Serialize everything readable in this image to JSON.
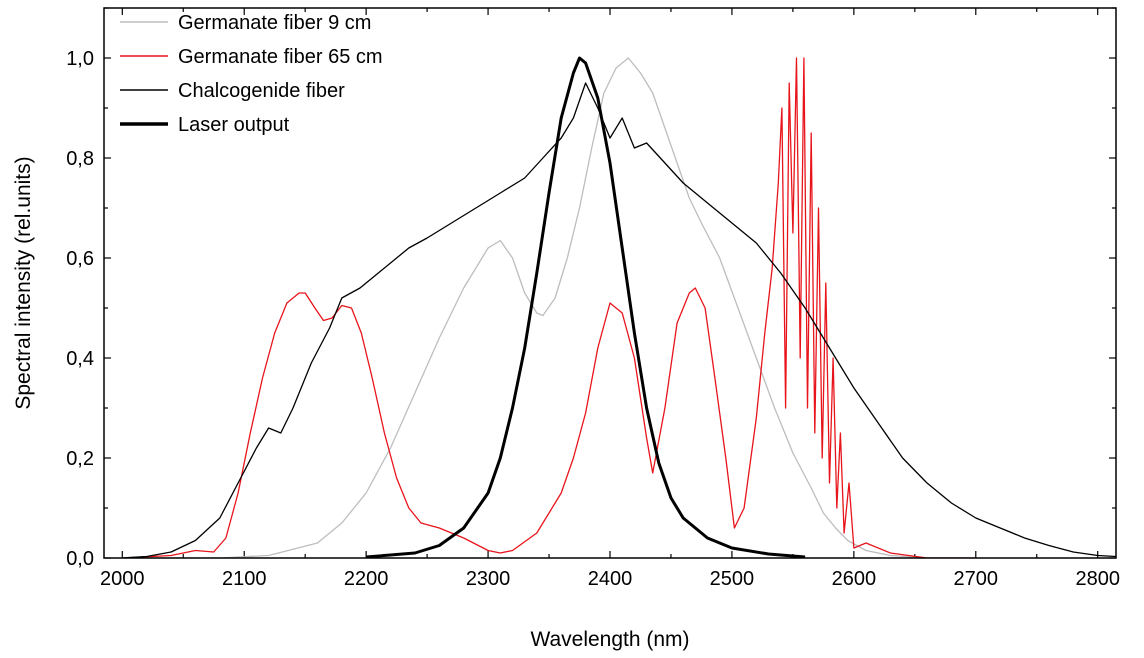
{
  "chart_data": {
    "type": "line",
    "xlabel": "Wavelength (nm)",
    "ylabel": "Spectral intensity (rel.units)",
    "xlim": [
      1985,
      2815
    ],
    "ylim": [
      0,
      1.1
    ],
    "x_ticks": [
      "2000",
      "2100",
      "2200",
      "2300",
      "2400",
      "2500",
      "2600",
      "2700",
      "2800"
    ],
    "y_ticks": [
      "0,0",
      "0,2",
      "0,4",
      "0,6",
      "0,8",
      "1,0"
    ],
    "legend_position": "top-left",
    "series": [
      {
        "name": "Germanate fiber 9 cm",
        "color": "#bdbdbd",
        "style": "thin",
        "x": [
          2000,
          2040,
          2080,
          2120,
          2160,
          2180,
          2200,
          2220,
          2240,
          2260,
          2280,
          2300,
          2310,
          2320,
          2330,
          2340,
          2345,
          2355,
          2365,
          2375,
          2385,
          2395,
          2405,
          2415,
          2425,
          2435,
          2445,
          2455,
          2465,
          2475,
          2490,
          2505,
          2520,
          2535,
          2550,
          2565,
          2575,
          2585,
          2595,
          2610,
          2630,
          2660,
          2700
        ],
        "y": [
          0.0,
          0.0,
          0.0,
          0.005,
          0.03,
          0.07,
          0.13,
          0.22,
          0.33,
          0.44,
          0.54,
          0.62,
          0.635,
          0.6,
          0.53,
          0.49,
          0.485,
          0.52,
          0.6,
          0.7,
          0.82,
          0.93,
          0.98,
          1.0,
          0.97,
          0.93,
          0.86,
          0.79,
          0.72,
          0.67,
          0.6,
          0.5,
          0.4,
          0.3,
          0.21,
          0.14,
          0.09,
          0.06,
          0.035,
          0.015,
          0.005,
          0.0,
          0.0
        ]
      },
      {
        "name": "Germanate fiber 65 cm",
        "color": "#e8141b",
        "style": "thin",
        "x": [
          2000,
          2040,
          2060,
          2075,
          2085,
          2095,
          2105,
          2115,
          2125,
          2135,
          2145,
          2150,
          2158,
          2165,
          2172,
          2180,
          2188,
          2196,
          2205,
          2215,
          2225,
          2235,
          2245,
          2260,
          2280,
          2300,
          2310,
          2320,
          2340,
          2360,
          2370,
          2380,
          2390,
          2400,
          2410,
          2420,
          2430,
          2435,
          2445,
          2455,
          2465,
          2470,
          2478,
          2486,
          2495,
          2502,
          2510,
          2520,
          2527,
          2533,
          2538,
          2541,
          2544,
          2547,
          2550,
          2553,
          2556,
          2559,
          2562,
          2565,
          2568,
          2571,
          2574,
          2577,
          2580,
          2583,
          2586,
          2589,
          2592,
          2596,
          2600,
          2610,
          2630,
          2660,
          2700
        ],
        "y": [
          0.0,
          0.005,
          0.015,
          0.012,
          0.04,
          0.13,
          0.25,
          0.36,
          0.45,
          0.51,
          0.53,
          0.53,
          0.5,
          0.475,
          0.48,
          0.505,
          0.5,
          0.45,
          0.36,
          0.25,
          0.16,
          0.1,
          0.07,
          0.06,
          0.04,
          0.015,
          0.01,
          0.015,
          0.05,
          0.13,
          0.2,
          0.29,
          0.42,
          0.51,
          0.49,
          0.4,
          0.24,
          0.17,
          0.3,
          0.47,
          0.53,
          0.54,
          0.5,
          0.36,
          0.2,
          0.06,
          0.1,
          0.28,
          0.45,
          0.58,
          0.75,
          0.9,
          0.3,
          0.95,
          0.65,
          1.0,
          0.4,
          1.0,
          0.3,
          0.85,
          0.25,
          0.7,
          0.2,
          0.55,
          0.15,
          0.4,
          0.1,
          0.25,
          0.05,
          0.15,
          0.02,
          0.03,
          0.01,
          0.0,
          0.0
        ]
      },
      {
        "name": "Chalcogenide fiber",
        "color": "#000000",
        "style": "thin",
        "x": [
          2000,
          2020,
          2040,
          2060,
          2080,
          2095,
          2110,
          2120,
          2130,
          2140,
          2155,
          2170,
          2180,
          2195,
          2210,
          2225,
          2235,
          2250,
          2270,
          2290,
          2310,
          2330,
          2345,
          2360,
          2370,
          2380,
          2390,
          2400,
          2410,
          2420,
          2430,
          2445,
          2460,
          2480,
          2500,
          2520,
          2540,
          2560,
          2580,
          2600,
          2620,
          2640,
          2660,
          2680,
          2700,
          2720,
          2740,
          2760,
          2780,
          2800,
          2815
        ],
        "y": [
          0.0,
          0.003,
          0.012,
          0.035,
          0.08,
          0.15,
          0.22,
          0.26,
          0.25,
          0.3,
          0.39,
          0.46,
          0.52,
          0.54,
          0.57,
          0.6,
          0.62,
          0.64,
          0.67,
          0.7,
          0.73,
          0.76,
          0.8,
          0.84,
          0.88,
          0.95,
          0.9,
          0.84,
          0.88,
          0.82,
          0.83,
          0.79,
          0.75,
          0.71,
          0.67,
          0.63,
          0.57,
          0.5,
          0.42,
          0.34,
          0.27,
          0.2,
          0.15,
          0.11,
          0.08,
          0.06,
          0.04,
          0.025,
          0.012,
          0.005,
          0.003
        ]
      },
      {
        "name": "Laser output",
        "color": "#000000",
        "style": "thick",
        "x": [
          2200,
          2240,
          2260,
          2280,
          2300,
          2310,
          2320,
          2330,
          2340,
          2350,
          2360,
          2370,
          2375,
          2380,
          2390,
          2400,
          2410,
          2420,
          2430,
          2440,
          2450,
          2460,
          2480,
          2500,
          2530,
          2560
        ],
        "y": [
          0.002,
          0.01,
          0.025,
          0.06,
          0.13,
          0.2,
          0.3,
          0.42,
          0.57,
          0.73,
          0.88,
          0.97,
          1.0,
          0.99,
          0.92,
          0.79,
          0.62,
          0.45,
          0.3,
          0.19,
          0.12,
          0.08,
          0.04,
          0.02,
          0.008,
          0.002
        ]
      }
    ]
  }
}
